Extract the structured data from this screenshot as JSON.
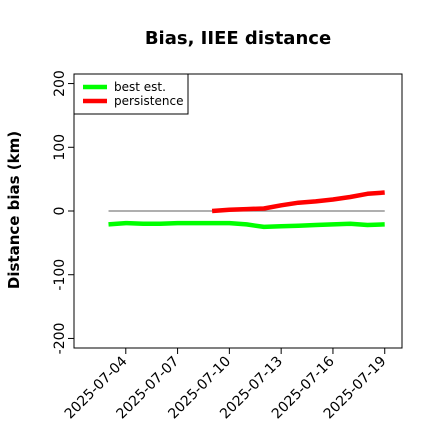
{
  "chart_data": {
    "type": "line",
    "title": "Bias, IIEE distance",
    "xlabel": "",
    "ylabel": "Distance bias (km)",
    "ylim": [
      -215,
      215
    ],
    "xlim": [
      "2025-07-01",
      "2025-07-20"
    ],
    "yticks": [
      -200,
      -100,
      0,
      100,
      200
    ],
    "yticklabels": [
      "-200",
      "-100",
      "0",
      "100",
      "200"
    ],
    "xticks": [
      "2025-07-04",
      "2025-07-07",
      "2025-07-10",
      "2025-07-13",
      "2025-07-16",
      "2025-07-19"
    ],
    "zero_line": true,
    "legend_position": "top-left",
    "series": [
      {
        "name": "best est.",
        "color": "#00ff00",
        "x": [
          "2025-07-03",
          "2025-07-04",
          "2025-07-05",
          "2025-07-06",
          "2025-07-07",
          "2025-07-08",
          "2025-07-09",
          "2025-07-10",
          "2025-07-11",
          "2025-07-12",
          "2025-07-13",
          "2025-07-14",
          "2025-07-15",
          "2025-07-16",
          "2025-07-17",
          "2025-07-18",
          "2025-07-19"
        ],
        "y": [
          -21,
          -19,
          -20,
          -20,
          -19,
          -19,
          -19,
          -19,
          -21,
          -25,
          -24,
          -23,
          -22,
          -21,
          -20,
          -22,
          -21
        ]
      },
      {
        "name": "persistence",
        "color": "#ff0000",
        "x": [
          "2025-07-09",
          "2025-07-10",
          "2025-07-11",
          "2025-07-12",
          "2025-07-13",
          "2025-07-14",
          "2025-07-15",
          "2025-07-16",
          "2025-07-17",
          "2025-07-18",
          "2025-07-19"
        ],
        "y": [
          0,
          2,
          3,
          4,
          9,
          13,
          15,
          18,
          22,
          27,
          29
        ]
      }
    ]
  }
}
